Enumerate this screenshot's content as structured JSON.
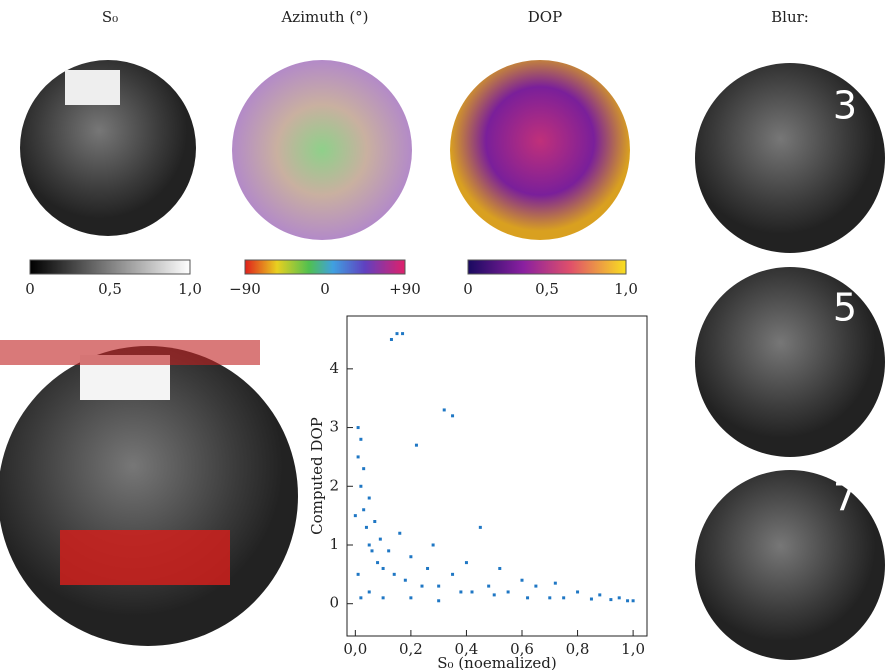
{
  "figure": {
    "panel_labels": [
      "S₀",
      "Azimuth (°)",
      "DOP",
      "Blur:"
    ],
    "colorbars": [
      [
        "0",
        "0,5",
        "1,0"
      ],
      [
        "−90",
        "0",
        "+90"
      ],
      [
        "0",
        "0,5",
        "1,0"
      ]
    ],
    "blur_levels": [
      "3",
      "5",
      "7"
    ]
  },
  "chart_data": {
    "type": "scatter",
    "xlabel": "S₀ (noemalized)",
    "ylabel": "Computed DOP",
    "color": "#1f77c4",
    "x": [
      0.01,
      0.01,
      0.02,
      0.02,
      0.03,
      0.03,
      0.04,
      0.05,
      0.05,
      0.06,
      0.07,
      0.08,
      0.09,
      0.1,
      0.12,
      0.13,
      0.15,
      0.17,
      0.14,
      0.16,
      0.18,
      0.2,
      0.22,
      0.24,
      0.26,
      0.28,
      0.3,
      0.32,
      0.35,
      0.35,
      0.38,
      0.4,
      0.42,
      0.45,
      0.48,
      0.5,
      0.52,
      0.55,
      0.6,
      0.62,
      0.65,
      0.7,
      0.72,
      0.75,
      0.8,
      0.85,
      0.88,
      0.92,
      0.95,
      0.98,
      1.0,
      0.02,
      0.05,
      0.1,
      0.2,
      0.3,
      0.0,
      0.01
    ],
    "y": [
      3.0,
      2.5,
      2.8,
      2.0,
      1.6,
      2.3,
      1.3,
      1.8,
      1.0,
      0.9,
      1.4,
      0.7,
      1.1,
      0.6,
      0.9,
      4.5,
      4.6,
      4.6,
      0.5,
      1.2,
      0.4,
      0.8,
      2.7,
      0.3,
      0.6,
      1.0,
      0.3,
      3.3,
      3.2,
      0.5,
      0.2,
      0.7,
      0.2,
      1.3,
      0.3,
      0.15,
      0.6,
      0.2,
      0.4,
      0.1,
      0.3,
      0.1,
      0.35,
      0.1,
      0.2,
      0.08,
      0.15,
      0.07,
      0.1,
      0.05,
      0.05,
      0.1,
      0.2,
      0.1,
      0.1,
      0.05,
      1.5,
      0.5
    ],
    "xlim": [
      -0.03,
      1.05
    ],
    "ylim": [
      -0.55,
      4.9
    ],
    "xticks": [
      {
        "value": 0,
        "label": "0,0"
      },
      {
        "value": 0.2,
        "label": "0,2"
      },
      {
        "value": 0.4,
        "label": "0,4"
      },
      {
        "value": 0.6,
        "label": "0,6"
      },
      {
        "value": 0.8,
        "label": "0,8"
      },
      {
        "value": 1,
        "label": "1,0"
      }
    ],
    "yticks": [
      0,
      1,
      2,
      3,
      4
    ]
  }
}
